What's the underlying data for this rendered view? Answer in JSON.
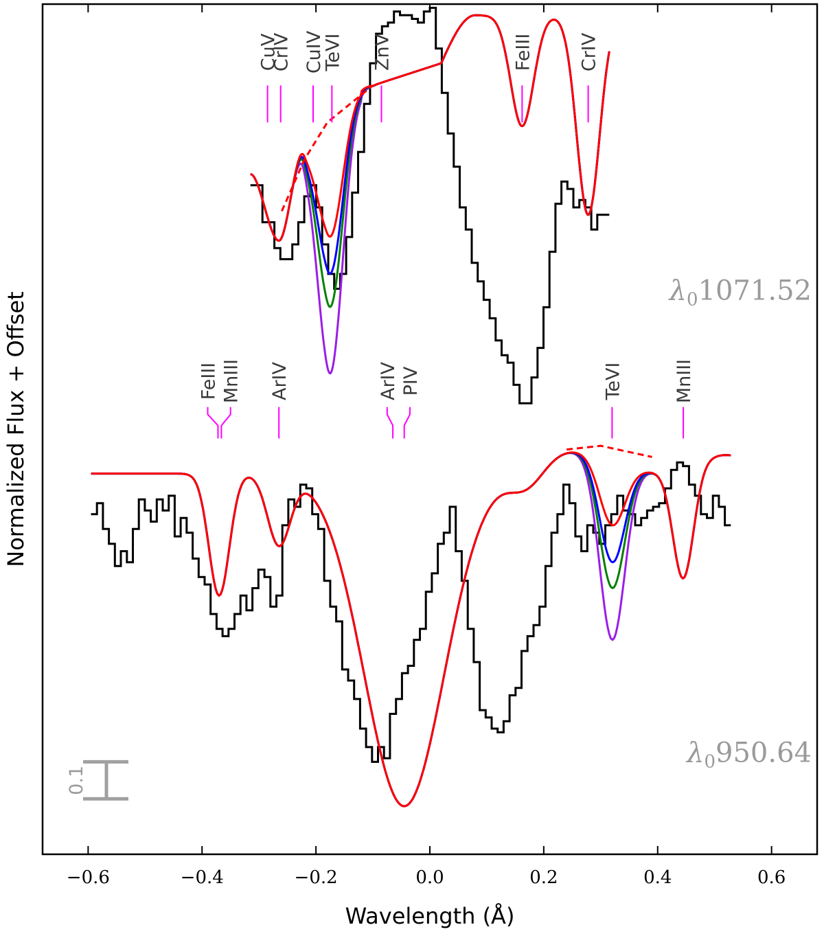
{
  "chart_data": {
    "type": "line",
    "xlabel": "Wavelength (Å)",
    "ylabel": "Normalized Flux + Offset",
    "xlim": [
      -0.68,
      0.68
    ],
    "ylim": [
      -0.2,
      2.1
    ],
    "xticks": [
      -0.6,
      -0.4,
      -0.2,
      0.0,
      0.2,
      0.4,
      0.6
    ],
    "xtick_labels": [
      "−0.6",
      "−0.4",
      "−0.2",
      "0.0",
      "0.2",
      "0.4",
      "0.6"
    ],
    "scale_bar": {
      "label": "0.1",
      "y_center": 0.0,
      "length": 0.1,
      "color": "#a0a0a0"
    },
    "colors": {
      "data": "#000000",
      "red": "#ff0000",
      "blue": "#0000ff",
      "green": "#008000",
      "purple": "#9a1ee6",
      "ions": "#ff00ff",
      "labels": "#9a9a9a"
    },
    "panels": [
      {
        "name": "upper",
        "label_prefix": "λ",
        "label_sub": "0",
        "label_value": "1071.52",
        "label_y": 1.3,
        "data_steps": {
          "x_start": -0.315,
          "dx": 0.0105,
          "y": [
            1.61,
            1.61,
            1.51,
            1.51,
            1.44,
            1.41,
            1.41,
            1.45,
            1.51,
            1.58,
            1.61,
            1.55,
            1.45,
            1.37,
            1.33,
            1.37,
            1.47,
            1.59,
            1.7,
            1.83,
            1.94,
            2.02,
            2.04,
            2.05,
            2.08,
            2.07,
            2.07,
            2.06,
            2.05,
            2.08,
            2.09,
            1.98,
            1.86,
            1.75,
            1.66,
            1.55,
            1.49,
            1.4,
            1.35,
            1.3,
            1.25,
            1.19,
            1.15,
            1.13,
            1.07,
            1.02,
            1.02,
            1.09,
            1.17,
            1.28,
            1.43,
            1.56,
            1.62,
            1.6,
            1.55,
            1.57,
            1.55,
            1.49,
            1.53,
            1.53
          ]
        },
        "model": {
          "baseline": 2.0,
          "components": [
            {
              "center": -0.265,
              "depth": 0.4,
              "sigma": 0.022
            },
            {
              "center": 0.162,
              "depth": 0.3,
              "sigma": 0.02
            },
            {
              "center": 0.278,
              "depth": 0.54,
              "sigma": 0.02
            }
          ],
          "shoulder": {
            "from": -0.1,
            "to": 0.02,
            "y_from": 1.88,
            "y_to": 1.94
          },
          "rise": [
            [
              -0.315,
              1.64
            ],
            [
              -0.265,
              1.46
            ],
            [
              -0.22,
              1.73
            ],
            [
              -0.18,
              1.82
            ],
            [
              -0.12,
              1.87
            ]
          ],
          "dashed": [
            [
              -0.26,
              1.54
            ],
            [
              -0.22,
              1.68
            ],
            [
              -0.18,
              1.78
            ],
            [
              -0.14,
              1.83
            ],
            [
              -0.1,
              1.88
            ]
          ],
          "target": {
            "center": -0.175,
            "sigma": 0.022,
            "depths": {
              "red": 0.35,
              "blue": 0.45,
              "green": 0.54,
              "purple": 0.72
            }
          }
        },
        "ions": [
          {
            "name": "CuV",
            "x": -0.285,
            "kink_to": -0.285
          },
          {
            "name": "CrIV",
            "x": -0.262,
            "kink_to": -0.262
          },
          {
            "name": "CuIV",
            "x": -0.205,
            "kink_to": -0.205
          },
          {
            "name": "TeVI",
            "x": -0.172,
            "kink_to": -0.172
          },
          {
            "name": "ZnV",
            "x": -0.085,
            "kink_to": -0.085
          },
          {
            "name": "FeIII",
            "x": 0.162,
            "kink_to": 0.162
          },
          {
            "name": "CrIV",
            "x": 0.278,
            "kink_to": 0.278
          }
        ]
      },
      {
        "name": "lower",
        "label_prefix": "λ",
        "label_sub": "0",
        "label_value": "950.64",
        "label_y": 0.05,
        "data_steps": {
          "x_start": -0.595,
          "dx": 0.0105,
          "y": [
            0.72,
            0.75,
            0.68,
            0.64,
            0.58,
            0.62,
            0.59,
            0.68,
            0.76,
            0.73,
            0.7,
            0.76,
            0.73,
            0.77,
            0.66,
            0.71,
            0.67,
            0.6,
            0.55,
            0.53,
            0.45,
            0.41,
            0.39,
            0.41,
            0.45,
            0.5,
            0.46,
            0.52,
            0.57,
            0.55,
            0.47,
            0.5,
            0.69,
            0.76,
            0.74,
            0.8,
            0.79,
            0.72,
            0.68,
            0.54,
            0.47,
            0.43,
            0.3,
            0.27,
            0.22,
            0.14,
            0.09,
            0.05,
            0.09,
            0.06,
            0.18,
            0.22,
            0.29,
            0.31,
            0.38,
            0.41,
            0.51,
            0.56,
            0.64,
            0.67,
            0.74,
            0.62,
            0.54,
            0.41,
            0.32,
            0.19,
            0.17,
            0.14,
            0.13,
            0.16,
            0.23,
            0.25,
            0.35,
            0.39,
            0.42,
            0.47,
            0.58,
            0.67,
            0.72,
            0.8,
            0.75,
            0.66,
            0.62,
            0.69,
            0.67,
            0.64,
            0.69,
            0.72,
            0.77,
            0.73,
            0.72,
            0.69,
            0.71,
            0.73,
            0.74,
            0.75,
            0.79,
            0.84,
            0.86,
            0.85,
            0.8,
            0.77,
            0.72,
            0.71,
            0.77,
            0.74,
            0.69
          ]
        },
        "model": {
          "baseline": 0.83,
          "components": [
            {
              "center": -0.37,
              "depth": 0.33,
              "sigma": 0.018
            },
            {
              "center": -0.265,
              "depth": 0.19,
              "sigma": 0.02
            },
            {
              "center": -0.045,
              "depth": 0.9,
              "sigma": 0.07
            },
            {
              "center": 0.17,
              "depth": 0.06,
              "sigma": 0.03
            },
            {
              "center": 0.445,
              "depth": 0.3,
              "sigma": 0.018
            }
          ],
          "dashed": [
            [
              0.24,
              0.895
            ],
            [
              0.3,
              0.905
            ],
            [
              0.36,
              0.885
            ],
            [
              0.39,
              0.875
            ]
          ],
          "target": {
            "center": 0.32,
            "sigma": 0.022,
            "depths": {
              "red": 0.17,
              "blue": 0.27,
              "green": 0.34,
              "purple": 0.48
            }
          }
        },
        "ions": [
          {
            "name": "FeIII",
            "x": -0.372,
            "kink_to": -0.39
          },
          {
            "name": "MnIII",
            "x": -0.366,
            "kink_to": -0.35
          },
          {
            "name": "ArIV",
            "x": -0.265,
            "kink_to": -0.265
          },
          {
            "name": "ArIV",
            "x": -0.065,
            "kink_to": -0.075
          },
          {
            "name": "PIV",
            "x": -0.045,
            "kink_to": -0.035
          },
          {
            "name": "TeVI",
            "x": 0.32,
            "kink_to": 0.32
          },
          {
            "name": "MnIII",
            "x": 0.445,
            "kink_to": 0.445
          }
        ]
      }
    ]
  }
}
